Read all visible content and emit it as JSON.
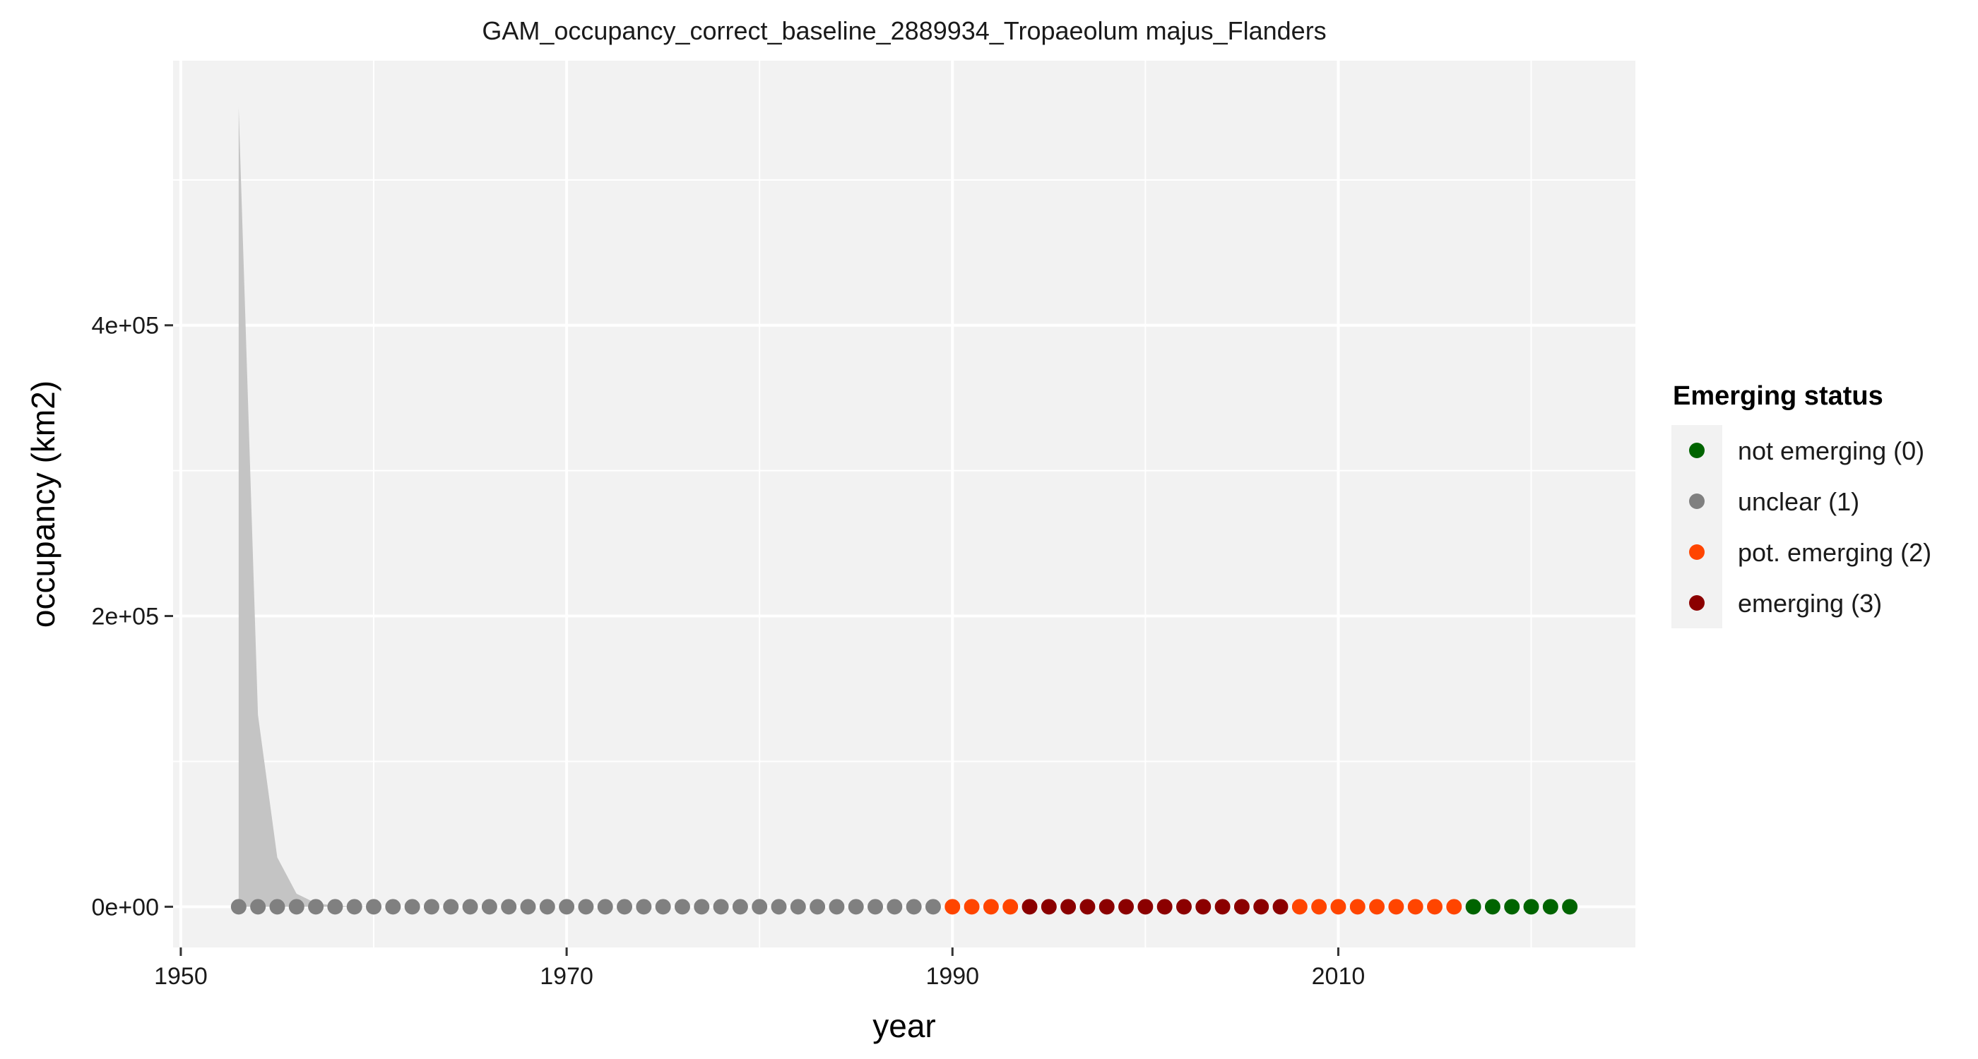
{
  "chart_data": {
    "type": "line",
    "title": "GAM_occupancy_correct_baseline_2889934_Tropaeolum majus_Flanders",
    "xlabel": "year",
    "ylabel": "occupancy (km2)",
    "xlim": [
      1949.6,
      2025.4
    ],
    "ylim": [
      -28000,
      582000
    ],
    "x_ticks": [
      {
        "value": 1950,
        "label": "1950"
      },
      {
        "value": 1970,
        "label": "1970"
      },
      {
        "value": 1990,
        "label": "1990"
      },
      {
        "value": 2010,
        "label": "2010"
      }
    ],
    "y_ticks": [
      {
        "value": 0,
        "label": "0e+00"
      },
      {
        "value": 200000,
        "label": "2e+05"
      },
      {
        "value": 400000,
        "label": "4e+05"
      }
    ],
    "grid": true,
    "legend_position": "right",
    "confidence_band": {
      "x": [
        1953,
        1954,
        1955,
        1956,
        1957,
        1958,
        1959,
        1960
      ],
      "lower": [
        0,
        0,
        0,
        0,
        0,
        0,
        0,
        0
      ],
      "upper": [
        550000,
        132000,
        34000,
        9000,
        2500,
        800,
        300,
        0
      ],
      "color": "#c4c4c4"
    },
    "legend": {
      "title": "Emerging status",
      "entries": [
        {
          "label": "not emerging (0)",
          "color": "#006400"
        },
        {
          "label": "unclear (1)",
          "color": "#808080"
        },
        {
          "label": "pot. emerging (2)",
          "color": "#ff4500"
        },
        {
          "label": "emerging (3)",
          "color": "#8b0000"
        }
      ]
    },
    "series": [
      {
        "status": 1,
        "color": "#808080",
        "x": [
          1953,
          1954,
          1955,
          1956,
          1957,
          1958,
          1959,
          1960,
          1961,
          1962,
          1963,
          1964,
          1965,
          1966,
          1967,
          1968,
          1969,
          1970,
          1971,
          1972,
          1973,
          1974,
          1975,
          1976,
          1977,
          1978,
          1979,
          1980,
          1981,
          1982,
          1983,
          1984,
          1985,
          1986,
          1987,
          1988,
          1989
        ],
        "y": [
          0,
          0,
          0,
          0,
          0,
          0,
          0,
          0,
          0,
          0,
          0,
          0,
          0,
          0,
          0,
          0,
          0,
          0,
          0,
          0,
          0,
          0,
          0,
          0,
          0,
          0,
          0,
          0,
          0,
          0,
          0,
          0,
          0,
          0,
          0,
          0,
          0
        ]
      },
      {
        "status": 2,
        "color": "#ff4500",
        "x": [
          1990,
          1991,
          1992,
          1993,
          2008,
          2009,
          2010,
          2011,
          2012,
          2013,
          2014,
          2015,
          2016
        ],
        "y": [
          0,
          0,
          0,
          0,
          0,
          0,
          0,
          0,
          0,
          0,
          0,
          0,
          0
        ]
      },
      {
        "status": 3,
        "color": "#8b0000",
        "x": [
          1994,
          1995,
          1996,
          1997,
          1998,
          1999,
          2000,
          2001,
          2002,
          2003,
          2004,
          2005,
          2006,
          2007
        ],
        "y": [
          0,
          0,
          0,
          0,
          0,
          0,
          0,
          0,
          0,
          0,
          0,
          0,
          0,
          0
        ]
      },
      {
        "status": 0,
        "color": "#006400",
        "x": [
          2017,
          2018,
          2019,
          2020,
          2021,
          2022
        ],
        "y": [
          0,
          0,
          0,
          0,
          0,
          0
        ]
      }
    ],
    "colors": {
      "panel_background": "#f2f2f2",
      "grid_line": "#ffffff",
      "legend_key_background": "#f2f2f2"
    }
  }
}
